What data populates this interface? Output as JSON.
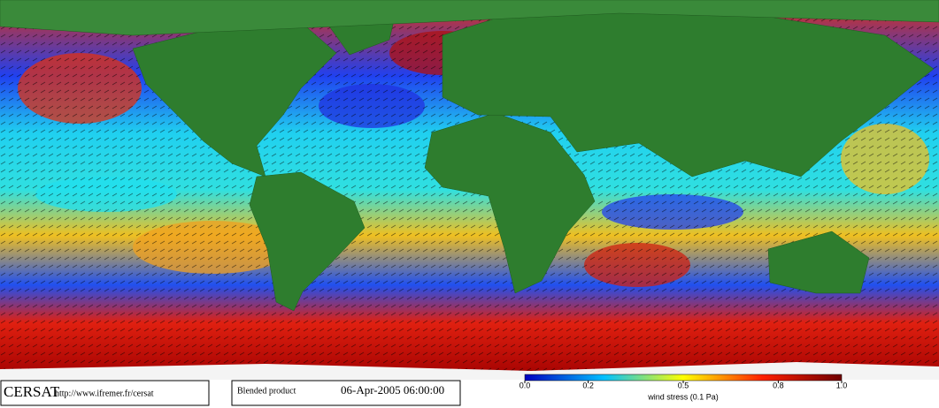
{
  "footer": {
    "logo": "CERSAT",
    "url": "http://www.ifremer.fr/cersat",
    "product": "Blended product",
    "date": "06-Apr-2005 06:00:00"
  },
  "colorbar": {
    "label": "wind stress (0.1 Pa)",
    "range": [
      0,
      1
    ],
    "ticks": [
      {
        "value": 0,
        "label": "0.0"
      },
      0.2,
      0.5,
      0.8,
      {
        "value": 1,
        "label": "1.0"
      }
    ]
  }
}
